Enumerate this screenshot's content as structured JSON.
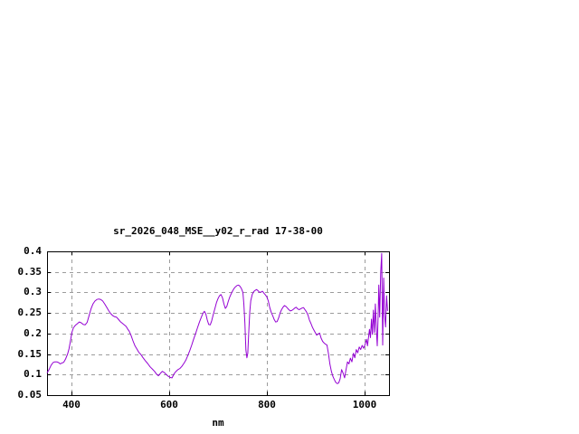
{
  "window": {
    "background": "#ffffff"
  },
  "chart_data": {
    "type": "line",
    "title": "sr_2026_048_MSE__y02_r_rad 17-38-00",
    "xlabel": "nm",
    "ylabel": "",
    "xlim": [
      350,
      1050
    ],
    "ylim": [
      0.05,
      0.4
    ],
    "grid": true,
    "legend_position": "none",
    "line_color": "#9400d3",
    "grid_color": "#9c9c9c",
    "border_color": "#000000",
    "xticks": {
      "values": [
        400,
        600,
        800,
        1000
      ],
      "labels": [
        "400",
        "600",
        "800",
        "1000"
      ]
    },
    "yticks": {
      "values": [
        0.05,
        0.1,
        0.15,
        0.2,
        0.25,
        0.3,
        0.35,
        0.4
      ],
      "labels": [
        "0.05",
        "0.1",
        "0.15",
        "0.2",
        "0.25",
        "0.3",
        "0.35",
        "0.4"
      ]
    },
    "series": [
      {
        "points": [
          [
            350,
            0.104
          ],
          [
            354,
            0.112
          ],
          [
            358,
            0.122
          ],
          [
            362,
            0.129
          ],
          [
            366,
            0.131
          ],
          [
            370,
            0.131
          ],
          [
            374,
            0.129
          ],
          [
            377,
            0.126
          ],
          [
            380,
            0.128
          ],
          [
            384,
            0.13
          ],
          [
            388,
            0.138
          ],
          [
            392,
            0.15
          ],
          [
            395,
            0.163
          ],
          [
            398,
            0.182
          ],
          [
            401,
            0.203
          ],
          [
            404,
            0.214
          ],
          [
            408,
            0.22
          ],
          [
            412,
            0.224
          ],
          [
            416,
            0.228
          ],
          [
            420,
            0.226
          ],
          [
            424,
            0.222
          ],
          [
            428,
            0.221
          ],
          [
            432,
            0.227
          ],
          [
            436,
            0.243
          ],
          [
            440,
            0.26
          ],
          [
            444,
            0.272
          ],
          [
            448,
            0.279
          ],
          [
            452,
            0.283
          ],
          [
            456,
            0.284
          ],
          [
            460,
            0.283
          ],
          [
            464,
            0.279
          ],
          [
            468,
            0.272
          ],
          [
            472,
            0.264
          ],
          [
            476,
            0.256
          ],
          [
            480,
            0.249
          ],
          [
            484,
            0.244
          ],
          [
            488,
            0.241
          ],
          [
            492,
            0.24
          ],
          [
            496,
            0.235
          ],
          [
            500,
            0.229
          ],
          [
            504,
            0.225
          ],
          [
            508,
            0.221
          ],
          [
            512,
            0.217
          ],
          [
            515,
            0.211
          ],
          [
            518,
            0.206
          ],
          [
            522,
            0.195
          ],
          [
            526,
            0.182
          ],
          [
            530,
            0.17
          ],
          [
            534,
            0.162
          ],
          [
            538,
            0.154
          ],
          [
            542,
            0.149
          ],
          [
            546,
            0.142
          ],
          [
            551,
            0.134
          ],
          [
            556,
            0.127
          ],
          [
            561,
            0.119
          ],
          [
            566,
            0.113
          ],
          [
            570,
            0.108
          ],
          [
            574,
            0.101
          ],
          [
            578,
            0.097
          ],
          [
            582,
            0.103
          ],
          [
            586,
            0.108
          ],
          [
            590,
            0.105
          ],
          [
            594,
            0.1
          ],
          [
            598,
            0.096
          ],
          [
            602,
            0.093
          ],
          [
            606,
            0.092
          ],
          [
            610,
            0.102
          ],
          [
            614,
            0.108
          ],
          [
            618,
            0.112
          ],
          [
            622,
            0.115
          ],
          [
            626,
            0.12
          ],
          [
            630,
            0.127
          ],
          [
            634,
            0.135
          ],
          [
            638,
            0.146
          ],
          [
            642,
            0.158
          ],
          [
            646,
            0.171
          ],
          [
            650,
            0.186
          ],
          [
            654,
            0.2
          ],
          [
            658,
            0.214
          ],
          [
            662,
            0.228
          ],
          [
            666,
            0.24
          ],
          [
            669,
            0.249
          ],
          [
            672,
            0.254
          ],
          [
            675,
            0.248
          ],
          [
            678,
            0.233
          ],
          [
            681,
            0.222
          ],
          [
            684,
            0.221
          ],
          [
            687,
            0.231
          ],
          [
            690,
            0.245
          ],
          [
            694,
            0.263
          ],
          [
            697,
            0.276
          ],
          [
            700,
            0.285
          ],
          [
            703,
            0.292
          ],
          [
            706,
            0.295
          ],
          [
            709,
            0.287
          ],
          [
            712,
            0.272
          ],
          [
            715,
            0.261
          ],
          [
            718,
            0.266
          ],
          [
            721,
            0.278
          ],
          [
            724,
            0.289
          ],
          [
            727,
            0.297
          ],
          [
            730,
            0.304
          ],
          [
            733,
            0.31
          ],
          [
            736,
            0.314
          ],
          [
            739,
            0.317
          ],
          [
            742,
            0.318
          ],
          [
            745,
            0.315
          ],
          [
            748,
            0.309
          ],
          [
            751,
            0.3
          ],
          [
            753,
            0.27
          ],
          [
            755,
            0.225
          ],
          [
            757,
            0.16
          ],
          [
            759,
            0.141
          ],
          [
            761,
            0.152
          ],
          [
            763,
            0.205
          ],
          [
            765,
            0.253
          ],
          [
            767,
            0.28
          ],
          [
            770,
            0.295
          ],
          [
            773,
            0.302
          ],
          [
            776,
            0.305
          ],
          [
            779,
            0.307
          ],
          [
            782,
            0.304
          ],
          [
            785,
            0.3
          ],
          [
            788,
            0.301
          ],
          [
            791,
            0.303
          ],
          [
            794,
            0.298
          ],
          [
            797,
            0.294
          ],
          [
            800,
            0.289
          ],
          [
            803,
            0.279
          ],
          [
            806,
            0.263
          ],
          [
            809,
            0.251
          ],
          [
            812,
            0.243
          ],
          [
            815,
            0.234
          ],
          [
            818,
            0.228
          ],
          [
            821,
            0.229
          ],
          [
            824,
            0.238
          ],
          [
            827,
            0.25
          ],
          [
            830,
            0.258
          ],
          [
            833,
            0.264
          ],
          [
            836,
            0.268
          ],
          [
            839,
            0.266
          ],
          [
            842,
            0.262
          ],
          [
            845,
            0.258
          ],
          [
            848,
            0.255
          ],
          [
            851,
            0.256
          ],
          [
            854,
            0.259
          ],
          [
            857,
            0.262
          ],
          [
            860,
            0.264
          ],
          [
            863,
            0.26
          ],
          [
            866,
            0.258
          ],
          [
            869,
            0.26
          ],
          [
            872,
            0.262
          ],
          [
            875,
            0.263
          ],
          [
            878,
            0.258
          ],
          [
            881,
            0.253
          ],
          [
            884,
            0.245
          ],
          [
            887,
            0.233
          ],
          [
            890,
            0.225
          ],
          [
            893,
            0.216
          ],
          [
            896,
            0.209
          ],
          [
            899,
            0.202
          ],
          [
            902,
            0.196
          ],
          [
            905,
            0.199
          ],
          [
            908,
            0.201
          ],
          [
            911,
            0.189
          ],
          [
            914,
            0.181
          ],
          [
            917,
            0.177
          ],
          [
            920,
            0.174
          ],
          [
            923,
            0.172
          ],
          [
            926,
            0.152
          ],
          [
            929,
            0.125
          ],
          [
            932,
            0.108
          ],
          [
            935,
            0.096
          ],
          [
            938,
            0.088
          ],
          [
            941,
            0.081
          ],
          [
            944,
            0.078
          ],
          [
            947,
            0.08
          ],
          [
            950,
            0.09
          ],
          [
            953,
            0.112
          ],
          [
            956,
            0.104
          ],
          [
            959,
            0.092
          ],
          [
            962,
            0.112
          ],
          [
            965,
            0.131
          ],
          [
            968,
            0.126
          ],
          [
            971,
            0.14
          ],
          [
            974,
            0.131
          ],
          [
            977,
            0.152
          ],
          [
            980,
            0.141
          ],
          [
            983,
            0.161
          ],
          [
            986,
            0.153
          ],
          [
            989,
            0.167
          ],
          [
            992,
            0.161
          ],
          [
            995,
            0.171
          ],
          [
            998,
            0.164
          ],
          [
            1001,
            0.173
          ],
          [
            1004,
            0.186
          ],
          [
            1006,
            0.17
          ],
          [
            1008,
            0.19
          ],
          [
            1010,
            0.21
          ],
          [
            1012,
            0.19
          ],
          [
            1014,
            0.235
          ],
          [
            1016,
            0.198
          ],
          [
            1018,
            0.257
          ],
          [
            1020,
            0.202
          ],
          [
            1022,
            0.272
          ],
          [
            1024,
            0.21
          ],
          [
            1026,
            0.17
          ],
          [
            1028,
            0.255
          ],
          [
            1029,
            0.318
          ],
          [
            1031,
            0.24
          ],
          [
            1033,
            0.348
          ],
          [
            1035,
            0.395
          ],
          [
            1037,
            0.172
          ],
          [
            1039,
            0.335
          ],
          [
            1041,
            0.245
          ],
          [
            1043,
            0.216
          ],
          [
            1045,
            0.292
          ],
          [
            1047,
            0.255
          ]
        ]
      }
    ]
  }
}
